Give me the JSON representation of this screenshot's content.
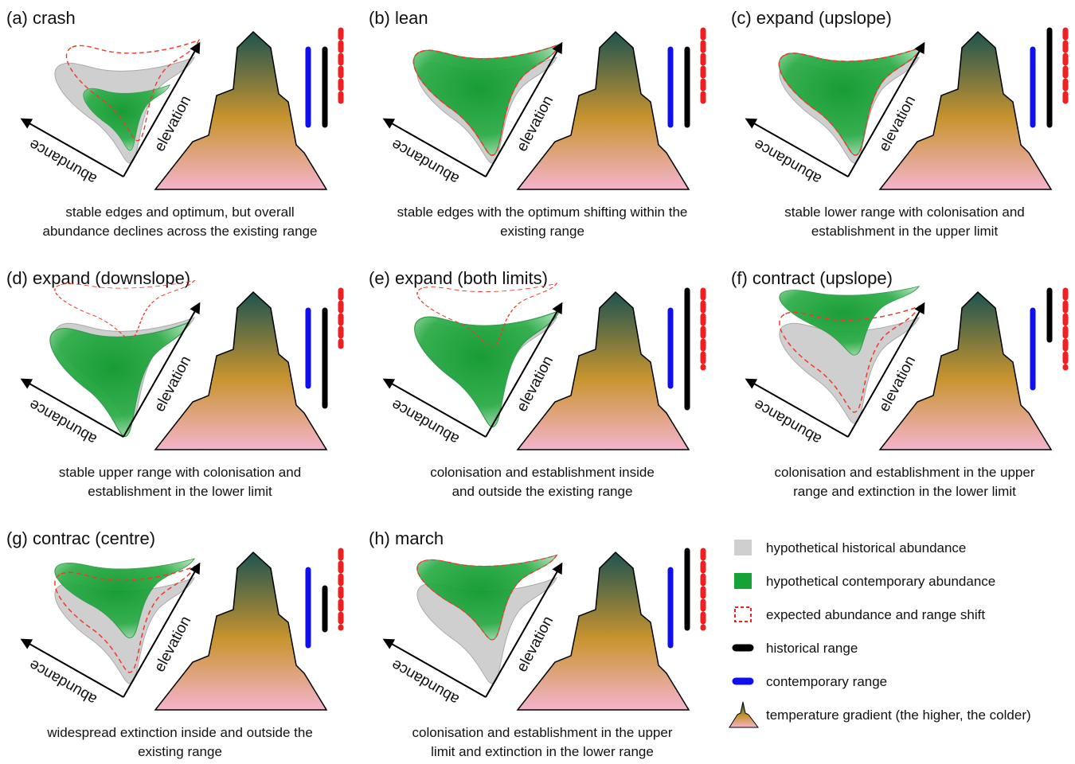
{
  "panels": [
    {
      "title": "(a) crash",
      "caption": [
        "stable edges and optimum, but overall",
        "abundance declines across the existing range"
      ]
    },
    {
      "title": "(b) lean",
      "caption": [
        "stable edges with the optimum shifting within the",
        "existing range"
      ]
    },
    {
      "title": "(c) expand (upslope)",
      "caption": [
        "stable lower range with colonisation and",
        "establishment in the upper limit"
      ]
    },
    {
      "title": "(d) expand (downslope)",
      "caption": [
        "stable upper range with colonisation and",
        "establishment in the lower limit"
      ]
    },
    {
      "title": "(e) expand (both limits)",
      "caption": [
        "colonisation and establishment inside",
        "and outside the existing range"
      ]
    },
    {
      "title": "(f) contract (upslope)",
      "caption": [
        "colonisation and establishment in the upper",
        "range and extinction in the lower limit"
      ]
    },
    {
      "title": "(g) contrac (centre)",
      "caption": [
        "widespread extinction inside and outside the",
        "existing range"
      ]
    },
    {
      "title": "(h) march",
      "caption": [
        "colonisation and establishment in the upper",
        "limit and extinction in the lower range"
      ]
    }
  ],
  "axis_labels": {
    "abundance": "abundance",
    "elevation": "elevation"
  },
  "legend": [
    "hypothetical historical abundance",
    "hypothetical contemporary abundance",
    "expected abundance and range shift",
    "historical range",
    "contemporary range",
    "temperature gradient (the higher, the colder)"
  ]
}
